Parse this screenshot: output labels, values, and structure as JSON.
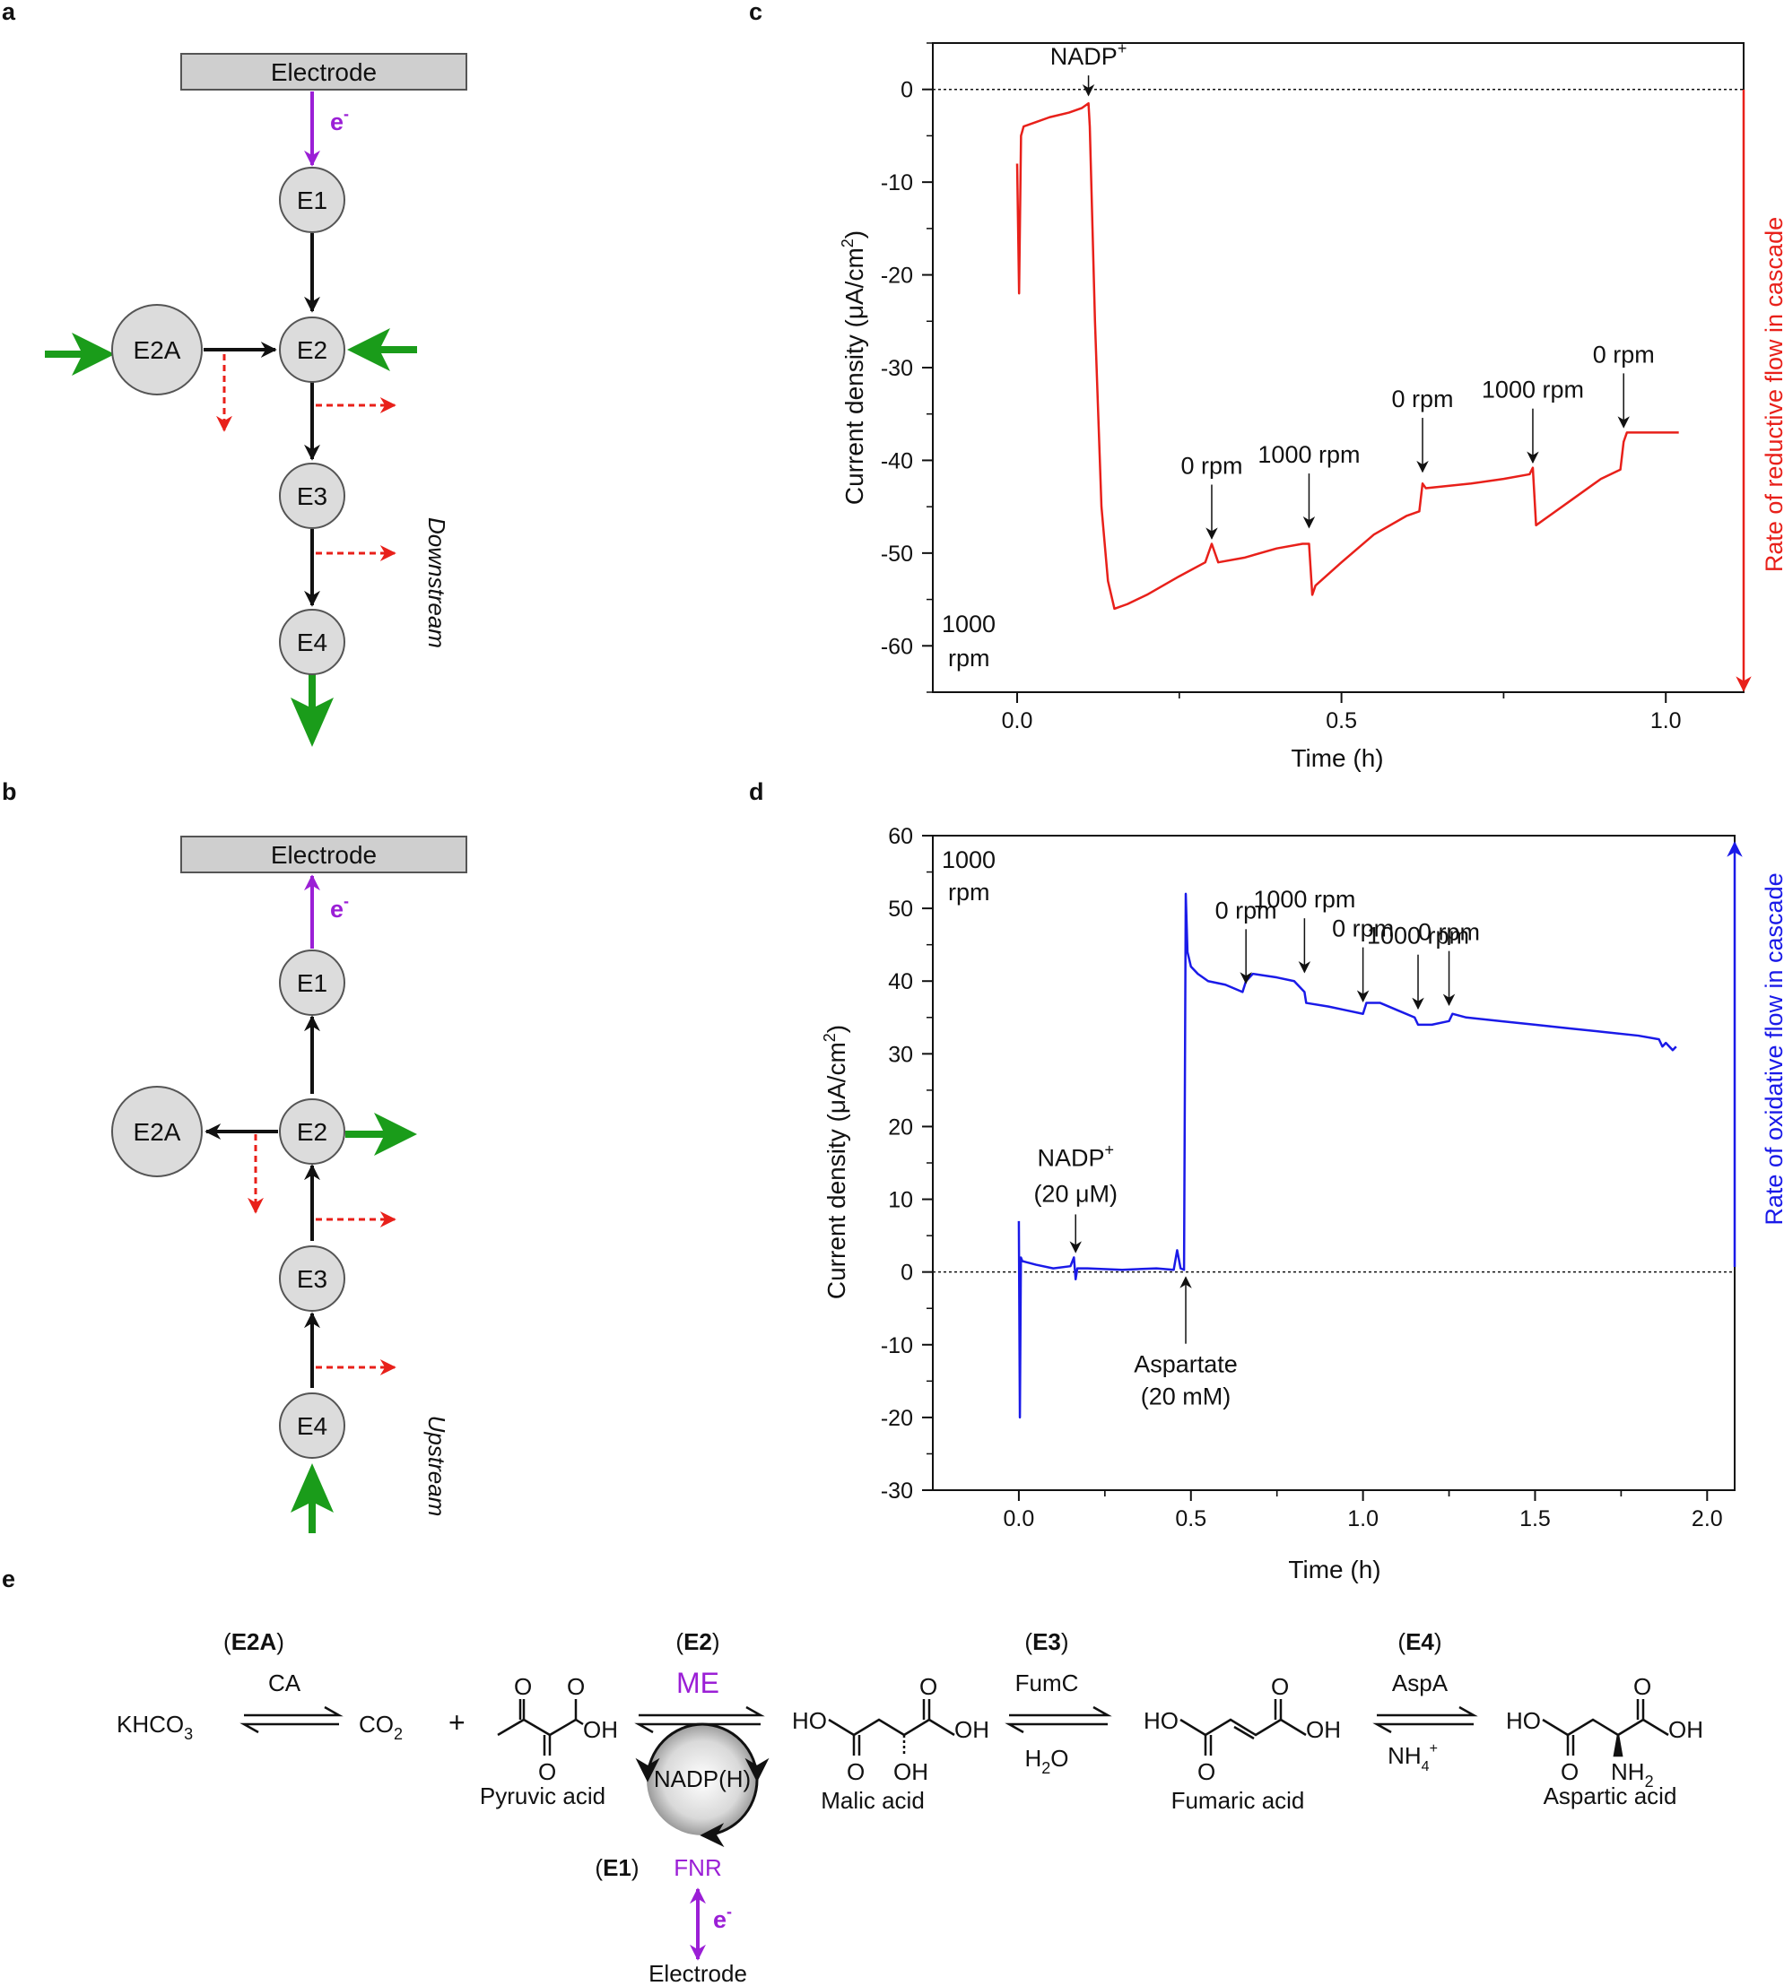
{
  "panel_labels": {
    "a": "a",
    "b": "b",
    "c": "c",
    "d": "d",
    "e": "e"
  },
  "colors": {
    "electron": "#9b1fd6",
    "green": "#1a9c1a",
    "red": "#e8201a",
    "trace_c": "#e8201a",
    "trace_d": "#1a1ae8",
    "node_fill": "#dcdcdc",
    "electrode_fill": "#cfcfcf"
  },
  "panel_a": {
    "electrode": "Electrode",
    "electron": "e",
    "electron_sup": "-",
    "nodes": {
      "e1": "E1",
      "e2": "E2",
      "e2a": "E2A",
      "e3": "E3",
      "e4": "E4"
    },
    "side_label": "Downstream"
  },
  "panel_b": {
    "electrode": "Electrode",
    "electron": "e",
    "electron_sup": "-",
    "nodes": {
      "e1": "E1",
      "e2": "E2",
      "e2a": "E2A",
      "e3": "E3",
      "e4": "E4"
    },
    "side_label": "Upstream"
  },
  "chart_data": [
    {
      "panel": "c",
      "type": "line",
      "xlabel": "Time (h)",
      "ylabel": "Current density (μA/cm²)",
      "ylabel_parts": {
        "pre": "Current density (",
        "mu": "μ",
        "mid": "A/cm",
        "sup": "2",
        "post": ")"
      },
      "xlim": [
        -0.13,
        1.12
      ],
      "ylim": [
        -65,
        5
      ],
      "xticks": [
        0.0,
        0.5,
        1.0
      ],
      "xtick_labels": [
        "0.0",
        "0.5",
        "1.0"
      ],
      "yticks": [
        0,
        -10,
        -20,
        -30,
        -40,
        -50,
        -60
      ],
      "ytick_labels": [
        "0",
        "-10",
        "-20",
        "-30",
        "-40",
        "-50",
        "-60"
      ],
      "zero_line": true,
      "series": [
        {
          "name": "current",
          "x": [
            0.0,
            0.003,
            0.006,
            0.01,
            0.03,
            0.05,
            0.08,
            0.1,
            0.11,
            0.112,
            0.12,
            0.13,
            0.14,
            0.15,
            0.17,
            0.2,
            0.25,
            0.29,
            0.3,
            0.31,
            0.35,
            0.4,
            0.44,
            0.45,
            0.455,
            0.46,
            0.5,
            0.55,
            0.6,
            0.62,
            0.625,
            0.63,
            0.7,
            0.75,
            0.79,
            0.795,
            0.8,
            0.82,
            0.86,
            0.9,
            0.93,
            0.935,
            0.94,
            0.98,
            1.02
          ],
          "y": [
            -8,
            -22,
            -5,
            -4,
            -3.5,
            -3,
            -2.5,
            -2,
            -1.5,
            -4,
            -25,
            -45,
            -53,
            -56,
            -55.5,
            -54.5,
            -52.5,
            -51,
            -49,
            -51,
            -50.5,
            -49.5,
            -49,
            -49,
            -54.5,
            -53.5,
            -51,
            -48,
            -46,
            -45.5,
            -42.5,
            -43,
            -42.5,
            -42,
            -41.5,
            -40.8,
            -47,
            -46,
            -44,
            -42,
            -41,
            -38,
            -37,
            -37,
            -37
          ]
        }
      ],
      "annotations": [
        {
          "id": "nadp",
          "text": "NADP",
          "sup": "+",
          "x": 0.11,
          "y": -1.2
        },
        {
          "id": "r1",
          "text": "0 rpm",
          "x": 0.3,
          "y": -49
        },
        {
          "id": "r2",
          "text": "1000 rpm",
          "x": 0.45,
          "y": -47.8
        },
        {
          "id": "r3",
          "text": "0 rpm",
          "x": 0.625,
          "y": -41.8
        },
        {
          "id": "r4",
          "text": "1000 rpm",
          "x": 0.795,
          "y": -40.8
        },
        {
          "id": "r5",
          "text": "0 rpm",
          "x": 0.935,
          "y": -37
        }
      ],
      "corner_label": [
        "1000",
        "rpm"
      ],
      "side_label": "Rate of reductive flow in cascade"
    },
    {
      "panel": "d",
      "type": "line",
      "xlabel": "Time (h)",
      "ylabel": "Current density (μA/cm²)",
      "ylabel_parts": {
        "pre": "Current density (",
        "mu": "μ",
        "mid": "A/cm",
        "sup": "2",
        "post": ")"
      },
      "xlim": [
        -0.25,
        2.08
      ],
      "ylim": [
        -30,
        60
      ],
      "xticks": [
        0.0,
        0.5,
        1.0,
        1.5,
        2.0
      ],
      "xtick_labels": [
        "0.0",
        "0.5",
        "1.0",
        "1.5",
        "2.0"
      ],
      "yticks": [
        60,
        50,
        40,
        30,
        20,
        10,
        0,
        -10,
        -20,
        -30
      ],
      "ytick_labels": [
        "60",
        "50",
        "40",
        "30",
        "20",
        "10",
        "0",
        "-10",
        "-20",
        "-30"
      ],
      "zero_line": true,
      "series": [
        {
          "name": "current",
          "x": [
            0.0,
            0.003,
            0.006,
            0.01,
            0.05,
            0.1,
            0.15,
            0.16,
            0.165,
            0.17,
            0.2,
            0.3,
            0.4,
            0.45,
            0.46,
            0.47,
            0.48,
            0.485,
            0.49,
            0.5,
            0.52,
            0.55,
            0.6,
            0.65,
            0.66,
            0.68,
            0.75,
            0.8,
            0.83,
            0.835,
            0.9,
            0.95,
            1.0,
            1.01,
            1.05,
            1.1,
            1.15,
            1.16,
            1.2,
            1.25,
            1.26,
            1.3,
            1.4,
            1.5,
            1.6,
            1.7,
            1.8,
            1.86,
            1.87,
            1.88,
            1.9,
            1.91
          ],
          "y": [
            7,
            -20,
            2,
            1.5,
            1,
            0.5,
            0.8,
            2,
            -1,
            0.5,
            0.5,
            0.3,
            0.5,
            0.3,
            3,
            0.5,
            0.3,
            52,
            44,
            42,
            41,
            40,
            39.5,
            38.5,
            40,
            41,
            40.5,
            40,
            38.5,
            37,
            36.5,
            36,
            35.5,
            37,
            37,
            36,
            35,
            34,
            34,
            34.5,
            35.5,
            35,
            34.5,
            34,
            33.5,
            33,
            32.5,
            32,
            31,
            31.5,
            30.5,
            31
          ]
        }
      ],
      "annotations": [
        {
          "id": "nadp",
          "text": "NADP",
          "sup": "+",
          "text2": "(20 μM)",
          "x": 0.165,
          "y": 2
        },
        {
          "id": "asp",
          "text": "Aspartate",
          "text2": "(20 mM)",
          "x": 0.485,
          "y": 0
        },
        {
          "id": "r1",
          "text": "0 rpm",
          "x": 0.66,
          "y": 39
        },
        {
          "id": "r2",
          "text": "1000 rpm",
          "x": 0.83,
          "y": 40.5
        },
        {
          "id": "r3",
          "text": "0 rpm",
          "x": 1.0,
          "y": 36.5
        },
        {
          "id": "r4",
          "text": "1000 rpm",
          "x": 1.16,
          "y": 35.5
        },
        {
          "id": "r5",
          "text": "0 rpm",
          "x": 1.25,
          "y": 36
        }
      ],
      "corner_label": [
        "1000",
        "rpm"
      ],
      "side_label": "Rate of oxidative flow in cascade"
    }
  ],
  "panel_e": {
    "steps": {
      "e2a": "E2A",
      "e2": "E2",
      "e3": "E3",
      "e4": "E4",
      "e1": "E1"
    },
    "enzymes": {
      "ca": "CA",
      "me": "ME",
      "fumc": "FumC",
      "aspa": "AspA",
      "fnr": "FNR"
    },
    "cofactor": "NADP(H)",
    "species": {
      "khco3": "KHCO",
      "khco3_sub": "3",
      "co2": "CO",
      "co2_sub": "2",
      "plus": "+",
      "h2o": "H",
      "h2o_sub": "2",
      "h2o_end": "O",
      "nh4": "NH",
      "nh4_sub": "4",
      "nh4_sup": "+"
    },
    "names": {
      "pyruvic": "Pyruvic acid",
      "malic": "Malic acid",
      "fumaric": "Fumaric acid",
      "aspartic": "Aspartic acid"
    },
    "atoms": {
      "o": "O",
      "oh": "OH",
      "ho": "HO",
      "nh2": "NH",
      "nh2_sub": "2"
    },
    "electrode": "Electrode",
    "electron": "e",
    "electron_sup": "-"
  }
}
